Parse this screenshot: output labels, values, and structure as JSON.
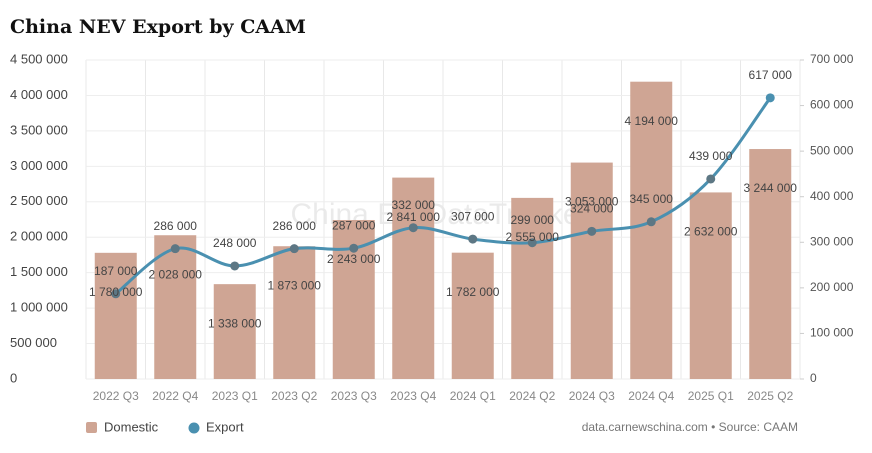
{
  "chart_data": {
    "type": "bar-line",
    "title": "China NEV Export by CAAM",
    "watermark": "China EV DataTracker",
    "source": "data.carnewschina.com • Source: CAAM",
    "categories": [
      "2022 Q3",
      "2022 Q4",
      "2023 Q1",
      "2023 Q2",
      "2023 Q3",
      "2023 Q4",
      "2024 Q1",
      "2024 Q2",
      "2024 Q3",
      "2024 Q4",
      "2025 Q1",
      "2025 Q2"
    ],
    "series": [
      {
        "name": "Domestic",
        "type": "bar",
        "color": "#cfa594",
        "values": [
          1780000,
          2028000,
          1338000,
          1873000,
          2243000,
          2841000,
          1782000,
          2555000,
          3053000,
          4194000,
          2632000,
          3244000
        ],
        "value_labels": [
          "1 780 000",
          "2 028 000",
          "1 338 000",
          "1 873 000",
          "2 243 000",
          "2 841 000",
          "1 782 000",
          "2 555 000",
          "3 053 000",
          "4 194 000",
          "2 632 000",
          "3 244 000"
        ]
      },
      {
        "name": "Export",
        "type": "line",
        "axis": "y2",
        "color": "#4a90b0",
        "values": [
          187000,
          286000,
          248000,
          286000,
          287000,
          332000,
          307000,
          299000,
          324000,
          345000,
          439000,
          617000
        ],
        "value_labels": [
          "187 000",
          "286 000",
          "248 000",
          "286 000",
          "287 000",
          "332 000",
          "307 000",
          "299 000",
          "324 000",
          "345 000",
          "439 000",
          "617 000"
        ]
      }
    ],
    "ylim": [
      0,
      4500000
    ],
    "yticks": [
      0,
      {
        "value": 500000,
        "label": "500 000"
      },
      {
        "value": 1000000,
        "label": "1 000 000"
      },
      {
        "value": 1500000,
        "label": "1 500 000"
      },
      {
        "value": 2000000,
        "label": "2 000 000"
      },
      {
        "value": 2500000,
        "label": "2 500 000"
      },
      {
        "value": 3000000,
        "label": "3 000 000"
      },
      {
        "value": 3500000,
        "label": "3 500 000"
      },
      {
        "value": 4000000,
        "label": "4 000 000"
      },
      {
        "value": 4500000,
        "label": "4 500 000"
      }
    ],
    "y2lim": [
      0,
      700000
    ],
    "y2ticks": [
      0,
      {
        "value": 100000,
        "label": "100 000"
      },
      {
        "value": 200000,
        "label": "200 000"
      },
      {
        "value": 300000,
        "label": "300 000"
      },
      {
        "value": 400000,
        "label": "400 000"
      },
      {
        "value": 500000,
        "label": "500 000"
      },
      {
        "value": 600000,
        "label": "600 000"
      },
      {
        "value": 700000,
        "label": "700 000"
      }
    ],
    "grid": true,
    "legend": "bottom-left"
  }
}
